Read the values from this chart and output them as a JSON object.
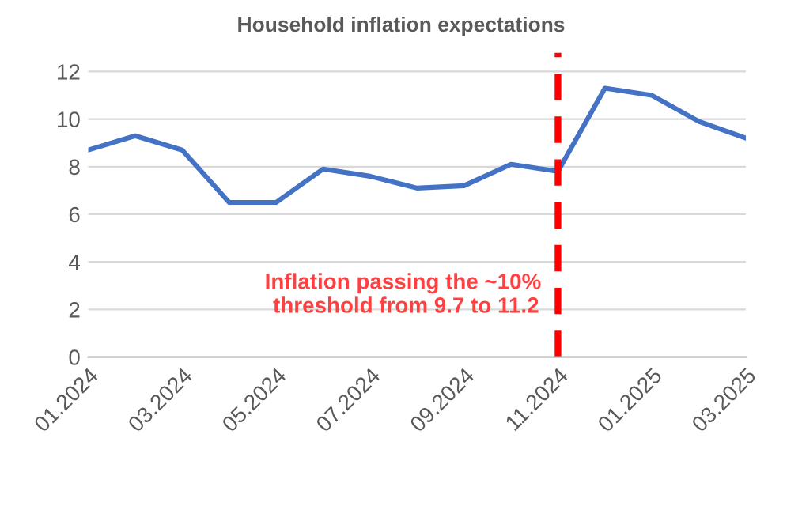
{
  "chart_data": {
    "type": "line",
    "title": "Household inflation expectations",
    "categories": [
      "01.2024",
      null,
      "03.2024",
      null,
      "05.2024",
      null,
      "07.2024",
      null,
      "09.2024",
      null,
      "11.2024",
      null,
      "01.2025",
      null,
      "03.2025"
    ],
    "series": [
      {
        "color": "#4472c4",
        "values": [
          8.7,
          9.3,
          8.7,
          6.5,
          6.5,
          7.9,
          7.6,
          7.1,
          7.2,
          8.1,
          7.8,
          11.3,
          11.0,
          9.9,
          9.2
        ]
      }
    ],
    "ylim": [
      0,
      12.8
    ],
    "yticks": [
      0,
      2,
      4,
      6,
      8,
      10,
      12
    ],
    "grid": "y",
    "ref_lines": [
      {
        "axis": "x",
        "value": "11.2024",
        "color": "#ff0000",
        "line_style": "dashed"
      }
    ],
    "annotations": [
      "Inflation passing the ~10%\n threshold from 9.7 to 11.2"
    ]
  }
}
